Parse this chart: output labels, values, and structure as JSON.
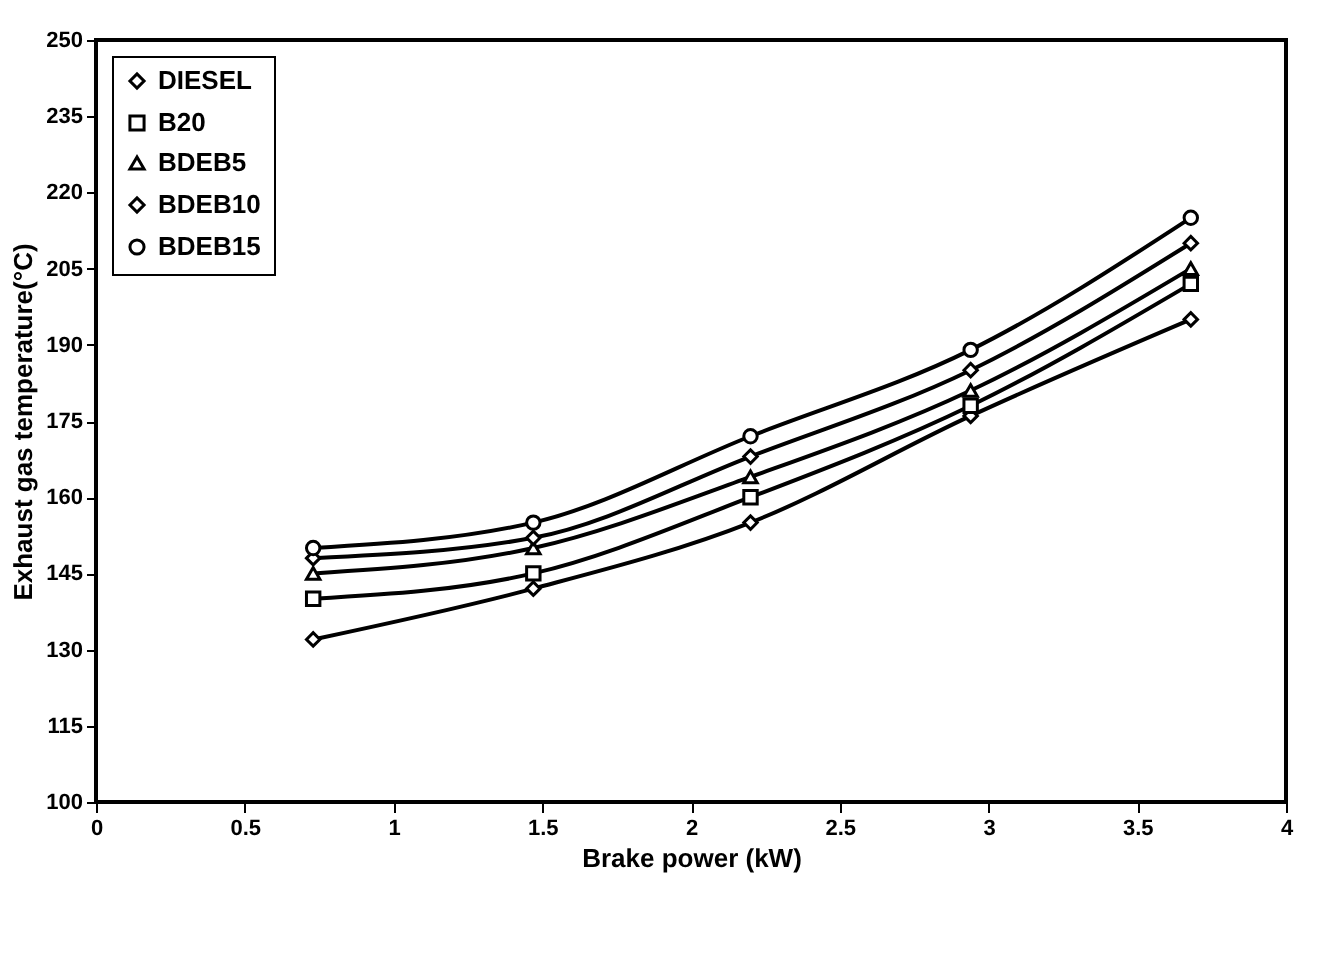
{
  "chart_data": {
    "type": "line",
    "xlabel": "Brake power (kW)",
    "ylabel": "Exhaust gas temperature(°C)",
    "x": [
      0.73,
      1.47,
      2.2,
      2.94,
      3.68
    ],
    "series": [
      {
        "name": "DIESEL",
        "color": "#000000",
        "marker": "diamond",
        "values": [
          132,
          142,
          155,
          176,
          195
        ]
      },
      {
        "name": "B20",
        "color": "#000000",
        "marker": "square",
        "values": [
          140,
          145,
          160,
          178,
          202
        ]
      },
      {
        "name": "BDEB5",
        "color": "#000000",
        "marker": "triangle",
        "values": [
          145,
          150,
          164,
          181,
          205
        ]
      },
      {
        "name": "BDEB10",
        "color": "#000000",
        "marker": "diamond",
        "values": [
          148,
          152,
          168,
          185,
          210
        ]
      },
      {
        "name": "BDEB15",
        "color": "#000000",
        "marker": "circle",
        "values": [
          150,
          155,
          172,
          189,
          215
        ]
      }
    ],
    "xlim": [
      0,
      4
    ],
    "xticks": [
      0,
      0.5,
      1,
      1.5,
      2,
      2.5,
      3,
      3.5,
      4
    ],
    "ylim": [
      100,
      250
    ],
    "yticks": [
      100,
      115,
      130,
      145,
      160,
      175,
      190,
      205,
      220,
      235,
      250
    ],
    "grid": false,
    "legend": "top left",
    "line_style": "solid"
  }
}
